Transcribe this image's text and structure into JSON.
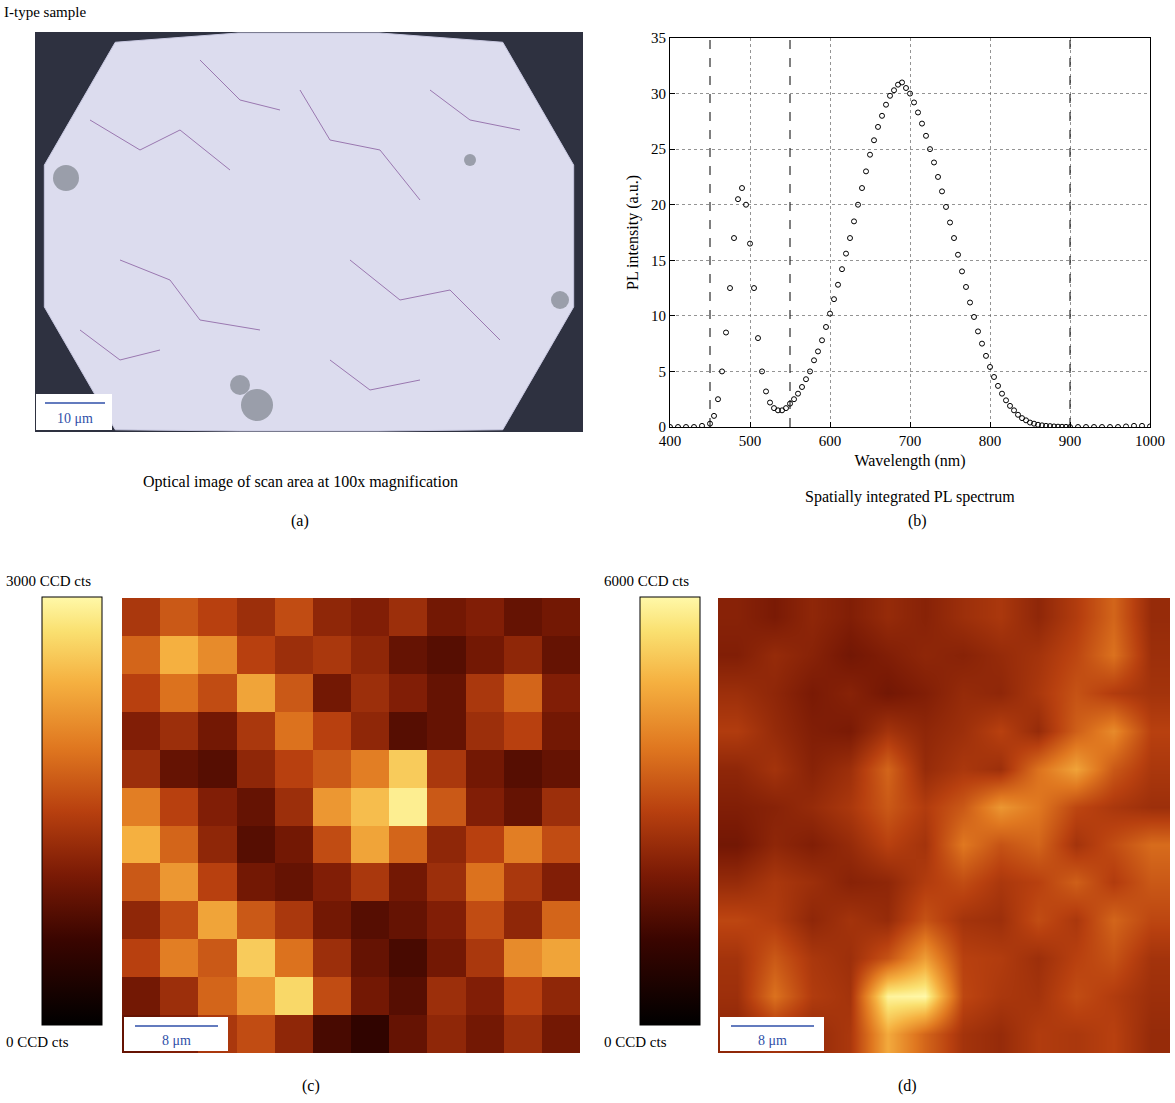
{
  "header": "I-type sample",
  "image_panel": {
    "panel_label": "(a)",
    "caption": "Optical image of scan area at 100x magnification",
    "scale_bar": "10 μm"
  },
  "chart_data": [
    {
      "type": "scatter",
      "panel_label": "(b)",
      "caption": "Spatially integrated PL spectrum",
      "x_label": "Wavelength (nm)",
      "y_label": "PL intensity (a.u.)",
      "marker": "circle-open",
      "color": "#000000",
      "x": [
        400,
        410,
        420,
        430,
        440,
        450,
        455,
        460,
        465,
        470,
        475,
        480,
        485,
        490,
        495,
        500,
        505,
        510,
        515,
        520,
        525,
        530,
        535,
        540,
        545,
        550,
        555,
        560,
        565,
        570,
        575,
        580,
        585,
        590,
        595,
        600,
        605,
        610,
        615,
        620,
        625,
        630,
        635,
        640,
        645,
        650,
        655,
        660,
        665,
        670,
        675,
        680,
        685,
        690,
        695,
        700,
        705,
        710,
        715,
        720,
        725,
        730,
        735,
        740,
        745,
        750,
        755,
        760,
        765,
        770,
        775,
        780,
        785,
        790,
        795,
        800,
        805,
        810,
        815,
        820,
        825,
        830,
        835,
        840,
        845,
        850,
        855,
        860,
        865,
        870,
        875,
        880,
        885,
        890,
        895,
        900,
        910,
        920,
        930,
        940,
        950,
        960,
        970,
        980,
        990,
        1000
      ],
      "values": [
        0,
        0,
        0,
        0,
        0.1,
        0.3,
        1,
        2.5,
        5,
        8.5,
        12.5,
        17,
        20.5,
        21.5,
        20,
        16.5,
        12.5,
        8,
        5,
        3.2,
        2.2,
        1.7,
        1.5,
        1.5,
        1.7,
        2.1,
        2.5,
        3,
        3.6,
        4.3,
        5,
        6,
        6.8,
        7.8,
        9,
        10.2,
        11.5,
        12.8,
        14.2,
        15.6,
        17,
        18.5,
        20,
        21.5,
        23,
        24.5,
        25.8,
        27,
        28,
        29,
        29.8,
        30.3,
        30.8,
        31,
        30.5,
        30,
        29.2,
        28.3,
        27.3,
        26.2,
        25,
        23.8,
        22.5,
        21.2,
        19.8,
        18.4,
        17,
        15.5,
        14,
        12.6,
        11.2,
        9.9,
        8.6,
        7.5,
        6.4,
        5.4,
        4.5,
        3.7,
        3,
        2.4,
        1.9,
        1.5,
        1.1,
        0.8,
        0.6,
        0.4,
        0.3,
        0.2,
        0.15,
        0.1,
        0.08,
        0.05,
        0.03,
        0.02,
        0.01,
        0,
        0,
        0,
        0,
        0,
        0,
        0,
        0.05,
        0.1,
        0.1,
        0.05
      ],
      "xlim": [
        400,
        1000
      ],
      "ylim": [
        0,
        35
      ],
      "xticks": [
        400,
        500,
        600,
        700,
        800,
        900,
        1000
      ],
      "yticks": [
        0,
        5,
        10,
        15,
        20,
        25,
        30,
        35
      ],
      "grid": true,
      "dashed_lines_x": [
        450,
        550,
        900
      ]
    },
    {
      "type": "heatmap",
      "panel_label": "(c)",
      "scale_bar": "8 μm",
      "tick_labels": false,
      "zlim": [
        0,
        3000
      ],
      "colorbar_ticks": [
        {
          "value": 3000,
          "label": "3000 CCD cts"
        },
        {
          "value": 0,
          "label": "0 CCD cts"
        }
      ],
      "z": [
        [
          1400,
          1700,
          1500,
          1300,
          1600,
          1200,
          1100,
          1300,
          1000,
          1100,
          900,
          1000
        ],
        [
          1800,
          2400,
          2100,
          1500,
          1300,
          1400,
          1200,
          900,
          800,
          1000,
          1200,
          900
        ],
        [
          1500,
          1900,
          1600,
          2300,
          1700,
          1000,
          1300,
          1100,
          900,
          1400,
          1800,
          1100
        ],
        [
          1100,
          1300,
          1000,
          1400,
          1900,
          1500,
          1200,
          800,
          900,
          1300,
          1500,
          1000
        ],
        [
          1300,
          900,
          800,
          1200,
          1500,
          1700,
          2000,
          2600,
          1400,
          1000,
          800,
          900
        ],
        [
          2000,
          1500,
          1100,
          900,
          1300,
          2200,
          2500,
          2900,
          1700,
          1100,
          900,
          1300
        ],
        [
          2400,
          1800,
          1200,
          800,
          1000,
          1600,
          2300,
          1800,
          1200,
          1500,
          2000,
          1600
        ],
        [
          1700,
          2200,
          1500,
          1000,
          900,
          1100,
          1400,
          1000,
          1300,
          1900,
          1400,
          1100
        ],
        [
          1200,
          1600,
          2300,
          1700,
          1400,
          1000,
          800,
          900,
          1100,
          1600,
          1200,
          1800
        ],
        [
          1500,
          2000,
          1700,
          2600,
          1900,
          1300,
          900,
          700,
          1000,
          1400,
          2100,
          2300
        ],
        [
          1000,
          1300,
          1800,
          2200,
          2700,
          1600,
          1000,
          800,
          1300,
          1100,
          1500,
          1200
        ],
        [
          900,
          1100,
          1400,
          1600,
          1200,
          700,
          500,
          900,
          1200,
          1000,
          1300,
          1000
        ]
      ]
    },
    {
      "type": "heatmap",
      "panel_label": "(d)",
      "scale_bar": "8 μm",
      "tick_labels": false,
      "zlim": [
        0,
        6000
      ],
      "colorbar_ticks": [
        {
          "value": 6000,
          "label": "6000 CCD cts"
        },
        {
          "value": 0,
          "label": "0 CCD cts"
        }
      ],
      "z": [
        [
          2300,
          2100,
          2400,
          2200,
          2500,
          2300,
          2600,
          2800,
          2400,
          2900,
          3600,
          2500
        ],
        [
          2200,
          2500,
          2300,
          2000,
          2200,
          2400,
          2300,
          2500,
          2700,
          3100,
          3800,
          2600
        ],
        [
          2600,
          2400,
          2100,
          2300,
          2000,
          2200,
          2500,
          2400,
          2800,
          3300,
          2900,
          2700
        ],
        [
          2900,
          2500,
          2200,
          2100,
          2700,
          2400,
          2600,
          3000,
          2500,
          3500,
          4200,
          3000
        ],
        [
          2400,
          2700,
          2300,
          2600,
          3600,
          2500,
          2800,
          2600,
          3800,
          4600,
          3400,
          2800
        ],
        [
          2200,
          2300,
          2500,
          2800,
          3400,
          2900,
          3400,
          4400,
          3900,
          3100,
          2800,
          2600
        ],
        [
          2000,
          2400,
          2200,
          2500,
          3000,
          2700,
          3900,
          3300,
          3600,
          2700,
          3200,
          3700
        ],
        [
          2500,
          2800,
          2600,
          2300,
          2400,
          2900,
          3200,
          2800,
          3000,
          3500,
          2900,
          3400
        ],
        [
          3100,
          2900,
          2400,
          2700,
          2500,
          3300,
          2700,
          2600,
          3200,
          2800,
          3600,
          3100
        ],
        [
          2700,
          3400,
          2800,
          2600,
          3300,
          4500,
          3000,
          2900,
          2600,
          3000,
          3300,
          2700
        ],
        [
          2600,
          3800,
          2900,
          2700,
          5900,
          6000,
          3100,
          2800,
          2700,
          3200,
          2900,
          2600
        ],
        [
          2400,
          2700,
          2500,
          2800,
          4700,
          3600,
          2700,
          2500,
          2900,
          2800,
          3000,
          2500
        ]
      ]
    }
  ]
}
